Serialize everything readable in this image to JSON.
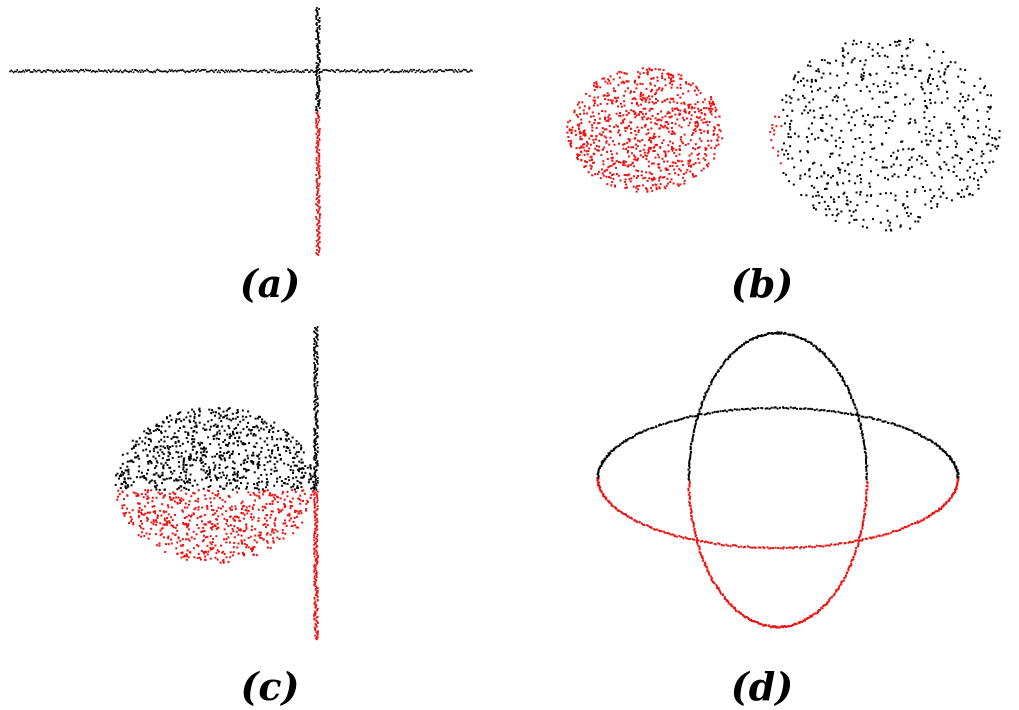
{
  "figure": {
    "background": "#ffffff",
    "colors": {
      "upper": "#000000",
      "lower": "#ee1111"
    },
    "panels": [
      {
        "id": "a",
        "label": "(a)",
        "shape": "cross-lines"
      },
      {
        "id": "b",
        "label": "(b)",
        "shape": "two-point-clouds"
      },
      {
        "id": "c",
        "label": "(c)",
        "shape": "sphere-and-line"
      },
      {
        "id": "d",
        "label": "(d)",
        "shape": "intersecting-ellipses"
      }
    ]
  }
}
